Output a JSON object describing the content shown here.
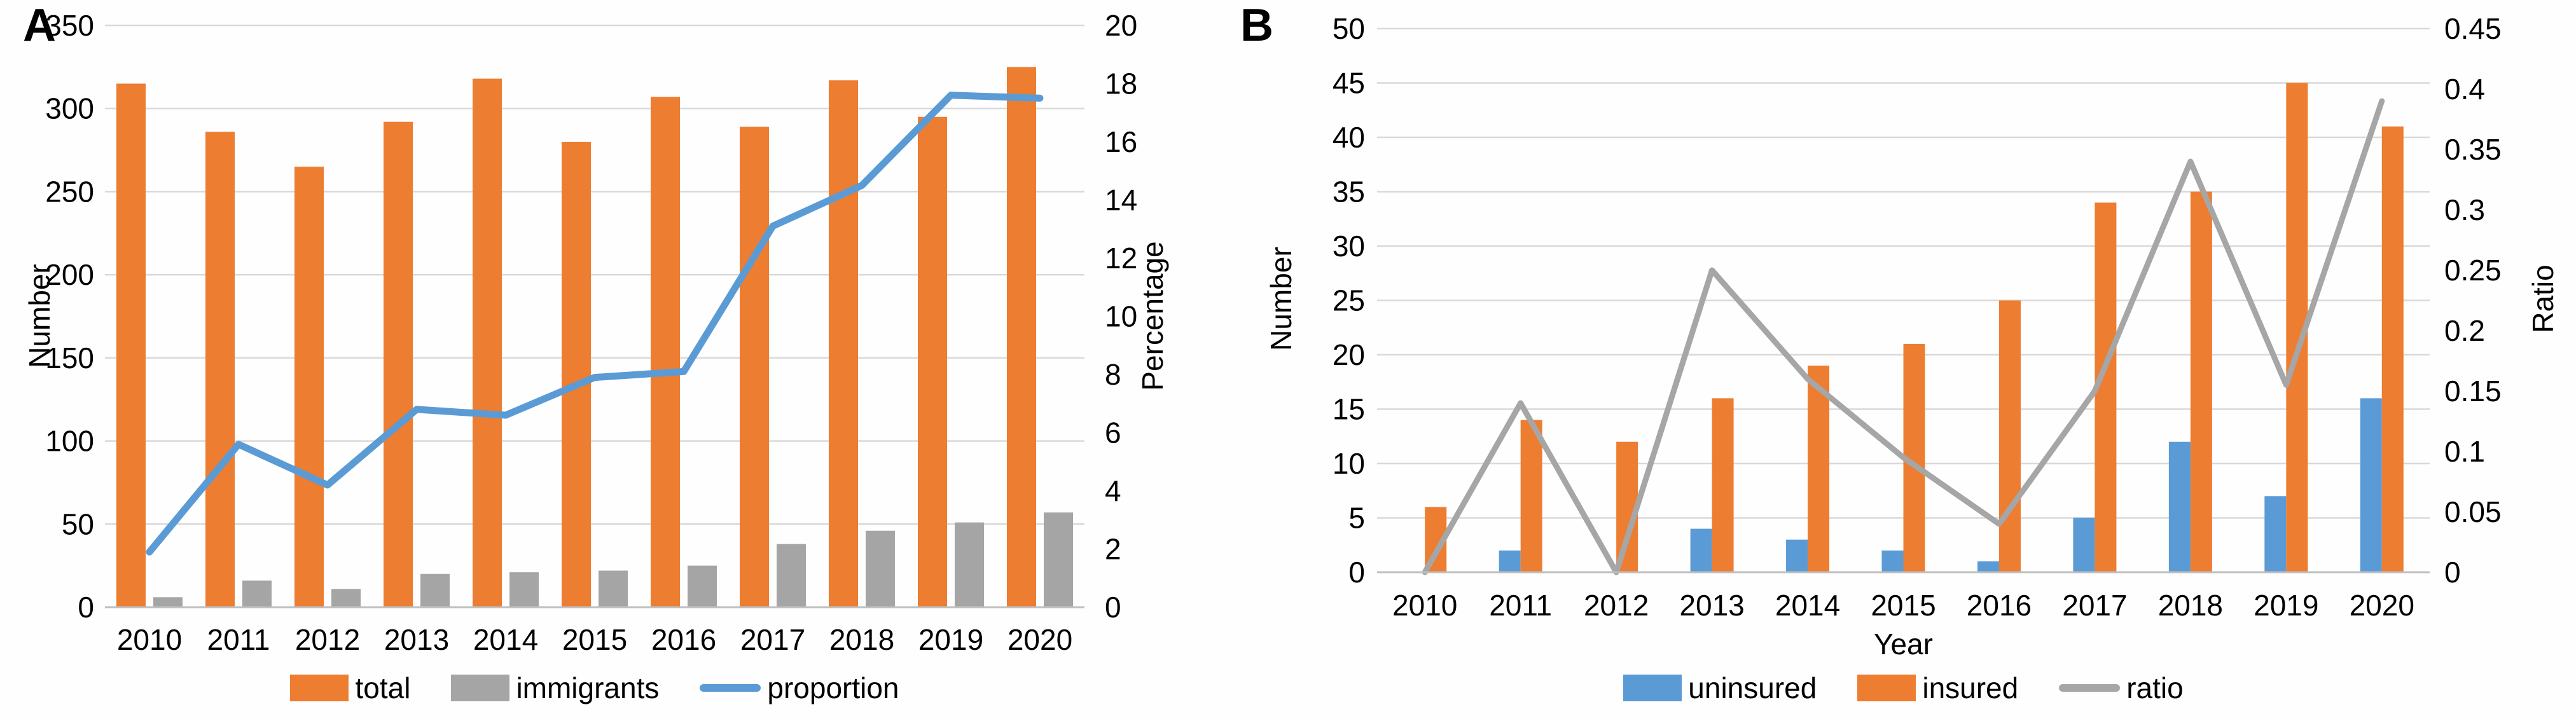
{
  "chart_data": [
    {
      "panel_label": "A",
      "type": "bar+line",
      "categories": [
        "2010",
        "2011",
        "2012",
        "2013",
        "2014",
        "2015",
        "2016",
        "2017",
        "2018",
        "2019",
        "2020"
      ],
      "series": [
        {
          "name": "total",
          "type": "bar",
          "axis": "left",
          "color": "#ED7D31",
          "values": [
            315,
            286,
            265,
            292,
            318,
            280,
            307,
            289,
            317,
            295,
            325
          ]
        },
        {
          "name": "immigrants",
          "type": "bar",
          "axis": "left",
          "color": "#A5A5A5",
          "values": [
            6,
            16,
            11,
            20,
            21,
            22,
            25,
            38,
            46,
            51,
            57
          ]
        },
        {
          "name": "proportion",
          "type": "line",
          "axis": "right",
          "color": "#5B9BD5",
          "values": [
            1.9,
            5.6,
            4.2,
            6.8,
            6.6,
            7.9,
            8.1,
            13.1,
            14.5,
            17.6,
            17.5
          ]
        }
      ],
      "left_axis": {
        "title": "Number",
        "min": 0,
        "max": 350,
        "step": 50
      },
      "right_axis": {
        "title": "Percentage",
        "min": 0,
        "max": 20,
        "step": 2
      },
      "x_axis_title": "",
      "legend_position": "bottom",
      "grid": true
    },
    {
      "panel_label": "B",
      "type": "bar+line",
      "categories": [
        "2010",
        "2011",
        "2012",
        "2013",
        "2014",
        "2015",
        "2016",
        "2017",
        "2018",
        "2019",
        "2020"
      ],
      "series": [
        {
          "name": "uninsured",
          "type": "bar",
          "axis": "left",
          "color": "#5B9BD5",
          "values": [
            0,
            2,
            0,
            4,
            3,
            2,
            1,
            5,
            12,
            7,
            16
          ]
        },
        {
          "name": "insured",
          "type": "bar",
          "axis": "left",
          "color": "#ED7D31",
          "values": [
            6,
            14,
            12,
            16,
            19,
            21,
            25,
            34,
            35,
            45,
            41
          ]
        },
        {
          "name": "ratio",
          "type": "line",
          "axis": "right",
          "color": "#A6A6A6",
          "values": [
            0,
            0.14,
            0,
            0.25,
            0.16,
            0.095,
            0.04,
            0.15,
            0.34,
            0.155,
            0.39
          ]
        }
      ],
      "left_axis": {
        "title": "Number",
        "min": 0,
        "max": 50,
        "step": 5
      },
      "right_axis": {
        "title": "Ratio",
        "min": 0,
        "max": 0.45,
        "step": 0.05
      },
      "x_axis_title": "Year",
      "legend_position": "bottom",
      "grid": true
    }
  ],
  "style_colors": {
    "gridline": "#D9D9D9",
    "axis_line": "#BFBFBF",
    "text": "#000000"
  }
}
